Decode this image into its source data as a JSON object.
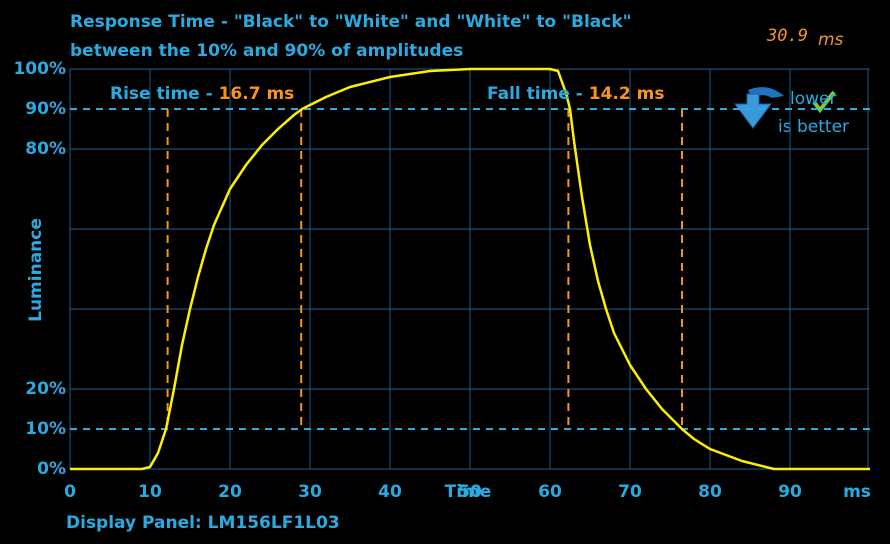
{
  "chart_data": {
    "type": "line",
    "title_lines": [
      "Response Time - \"Black\" to \"White\" and \"White\" to \"Black\"",
      "between the 10% and 90% of amplitudes"
    ],
    "result": {
      "value": "30.9",
      "unit": "ms"
    },
    "x_label": "Time",
    "x_unit": "ms",
    "y_label": "Luminance",
    "footer": "Display Panel: LM156LF1L03",
    "rise_label": "Rise time - ",
    "rise_value": "16.7 ms",
    "fall_label": "Fall time - ",
    "fall_value": "14.2 ms",
    "badge": [
      "lower",
      "is better"
    ],
    "xlim": [
      0,
      100
    ],
    "ylim": [
      0,
      100
    ],
    "xticks": [
      0,
      10,
      20,
      30,
      40,
      50,
      60,
      70,
      80,
      90
    ],
    "yticks": [
      {
        "value": 0,
        "label": "0%"
      },
      {
        "value": 10,
        "label": "10%"
      },
      {
        "value": 20,
        "label": "20%"
      },
      {
        "value": 80,
        "label": "80%"
      },
      {
        "value": 90,
        "label": "90%"
      },
      {
        "value": 100,
        "label": "100%"
      }
    ],
    "ygrid": [
      0,
      20,
      40,
      60,
      80,
      100
    ],
    "threshold_lines": [
      10,
      90
    ],
    "rise_markers": [
      12.2,
      28.9
    ],
    "fall_markers": [
      62.3,
      76.5
    ],
    "grid": true,
    "series": [
      {
        "name": "Luminance",
        "color": "#ffef00",
        "x": [
          0,
          9,
          10,
          11,
          12,
          13,
          14,
          15,
          16,
          17,
          18,
          20,
          22,
          24,
          26,
          28,
          29,
          32,
          35,
          40,
          45,
          50,
          60,
          61,
          62,
          62.5,
          63,
          64,
          65,
          66,
          67,
          68,
          70,
          72,
          74,
          76.5,
          78,
          80,
          84,
          88,
          100
        ],
        "values": [
          0,
          0,
          0.5,
          4,
          10,
          20,
          31,
          40,
          48,
          55,
          61,
          70,
          76,
          81,
          85,
          88.5,
          90,
          93,
          95.5,
          98,
          99.5,
          100,
          100,
          99.5,
          94,
          90,
          82,
          68,
          56,
          47,
          40,
          34,
          26,
          20,
          15,
          10,
          7.5,
          5,
          2,
          0,
          0
        ]
      }
    ]
  }
}
